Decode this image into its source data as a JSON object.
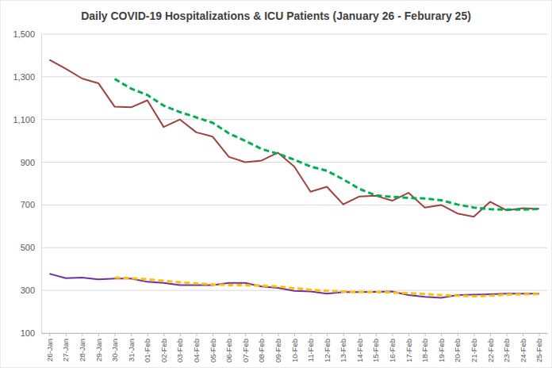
{
  "chart_data": {
    "type": "line",
    "title": "Daily COVID-19 Hospitalizations & ICU Patients (January 26 - Feburary 25)",
    "categories": [
      "26-Jan",
      "27-Jan",
      "28-Jan",
      "29-Jan",
      "30-Jan",
      "31-Jan",
      "01-Feb",
      "02-Feb",
      "03-Feb",
      "04-Feb",
      "05-Feb",
      "06-Feb",
      "07-Feb",
      "08-Feb",
      "09-Feb",
      "10-Feb",
      "11-Feb",
      "12-Feb",
      "13-Feb",
      "14-Feb",
      "15-Feb",
      "16-Feb",
      "17-Feb",
      "18-Feb",
      "19-Feb",
      "20-Feb",
      "21-Feb",
      "22-Feb",
      "23-Feb",
      "24-Feb",
      "25-Feb"
    ],
    "series": [
      {
        "color": "#a0413c",
        "line_style": "solid",
        "values": [
          1380,
          1338,
          1292,
          1270,
          1160,
          1157,
          1190,
          1065,
          1100,
          1040,
          1020,
          925,
          900,
          908,
          945,
          880,
          762,
          785,
          703,
          740,
          743,
          720,
          757,
          688,
          700,
          660,
          645,
          715,
          675,
          685,
          682
        ]
      },
      {
        "color": "#00b050",
        "line_style": "dashed",
        "values": [
          null,
          null,
          null,
          null,
          1290,
          1245,
          1215,
          1165,
          1135,
          1110,
          1085,
          1035,
          1000,
          962,
          940,
          912,
          880,
          860,
          820,
          775,
          745,
          738,
          733,
          730,
          722,
          702,
          688,
          680,
          678,
          678,
          682
        ]
      },
      {
        "color": "#7030a0",
        "line_style": "solid",
        "values": [
          378,
          357,
          360,
          352,
          355,
          355,
          340,
          335,
          325,
          325,
          325,
          335,
          335,
          318,
          312,
          298,
          295,
          285,
          292,
          292,
          293,
          295,
          278,
          270,
          265,
          278,
          280,
          282,
          285,
          285,
          285
        ]
      },
      {
        "color": "#ffc000",
        "line_style": "dashed",
        "values": [
          null,
          null,
          null,
          null,
          360,
          357,
          352,
          345,
          338,
          333,
          328,
          325,
          325,
          322,
          318,
          310,
          303,
          298,
          295,
          293,
          292,
          290,
          287,
          283,
          278,
          275,
          273,
          275,
          280,
          282,
          283
        ]
      }
    ],
    "ylim": [
      100,
      1500
    ],
    "yticks": [
      100,
      300,
      500,
      700,
      900,
      {
        "value": 1100,
        "label": "1,100"
      },
      {
        "value": 1300,
        "label": "1,300"
      },
      {
        "value": 1500,
        "label": "1,500"
      }
    ],
    "grid": true
  }
}
